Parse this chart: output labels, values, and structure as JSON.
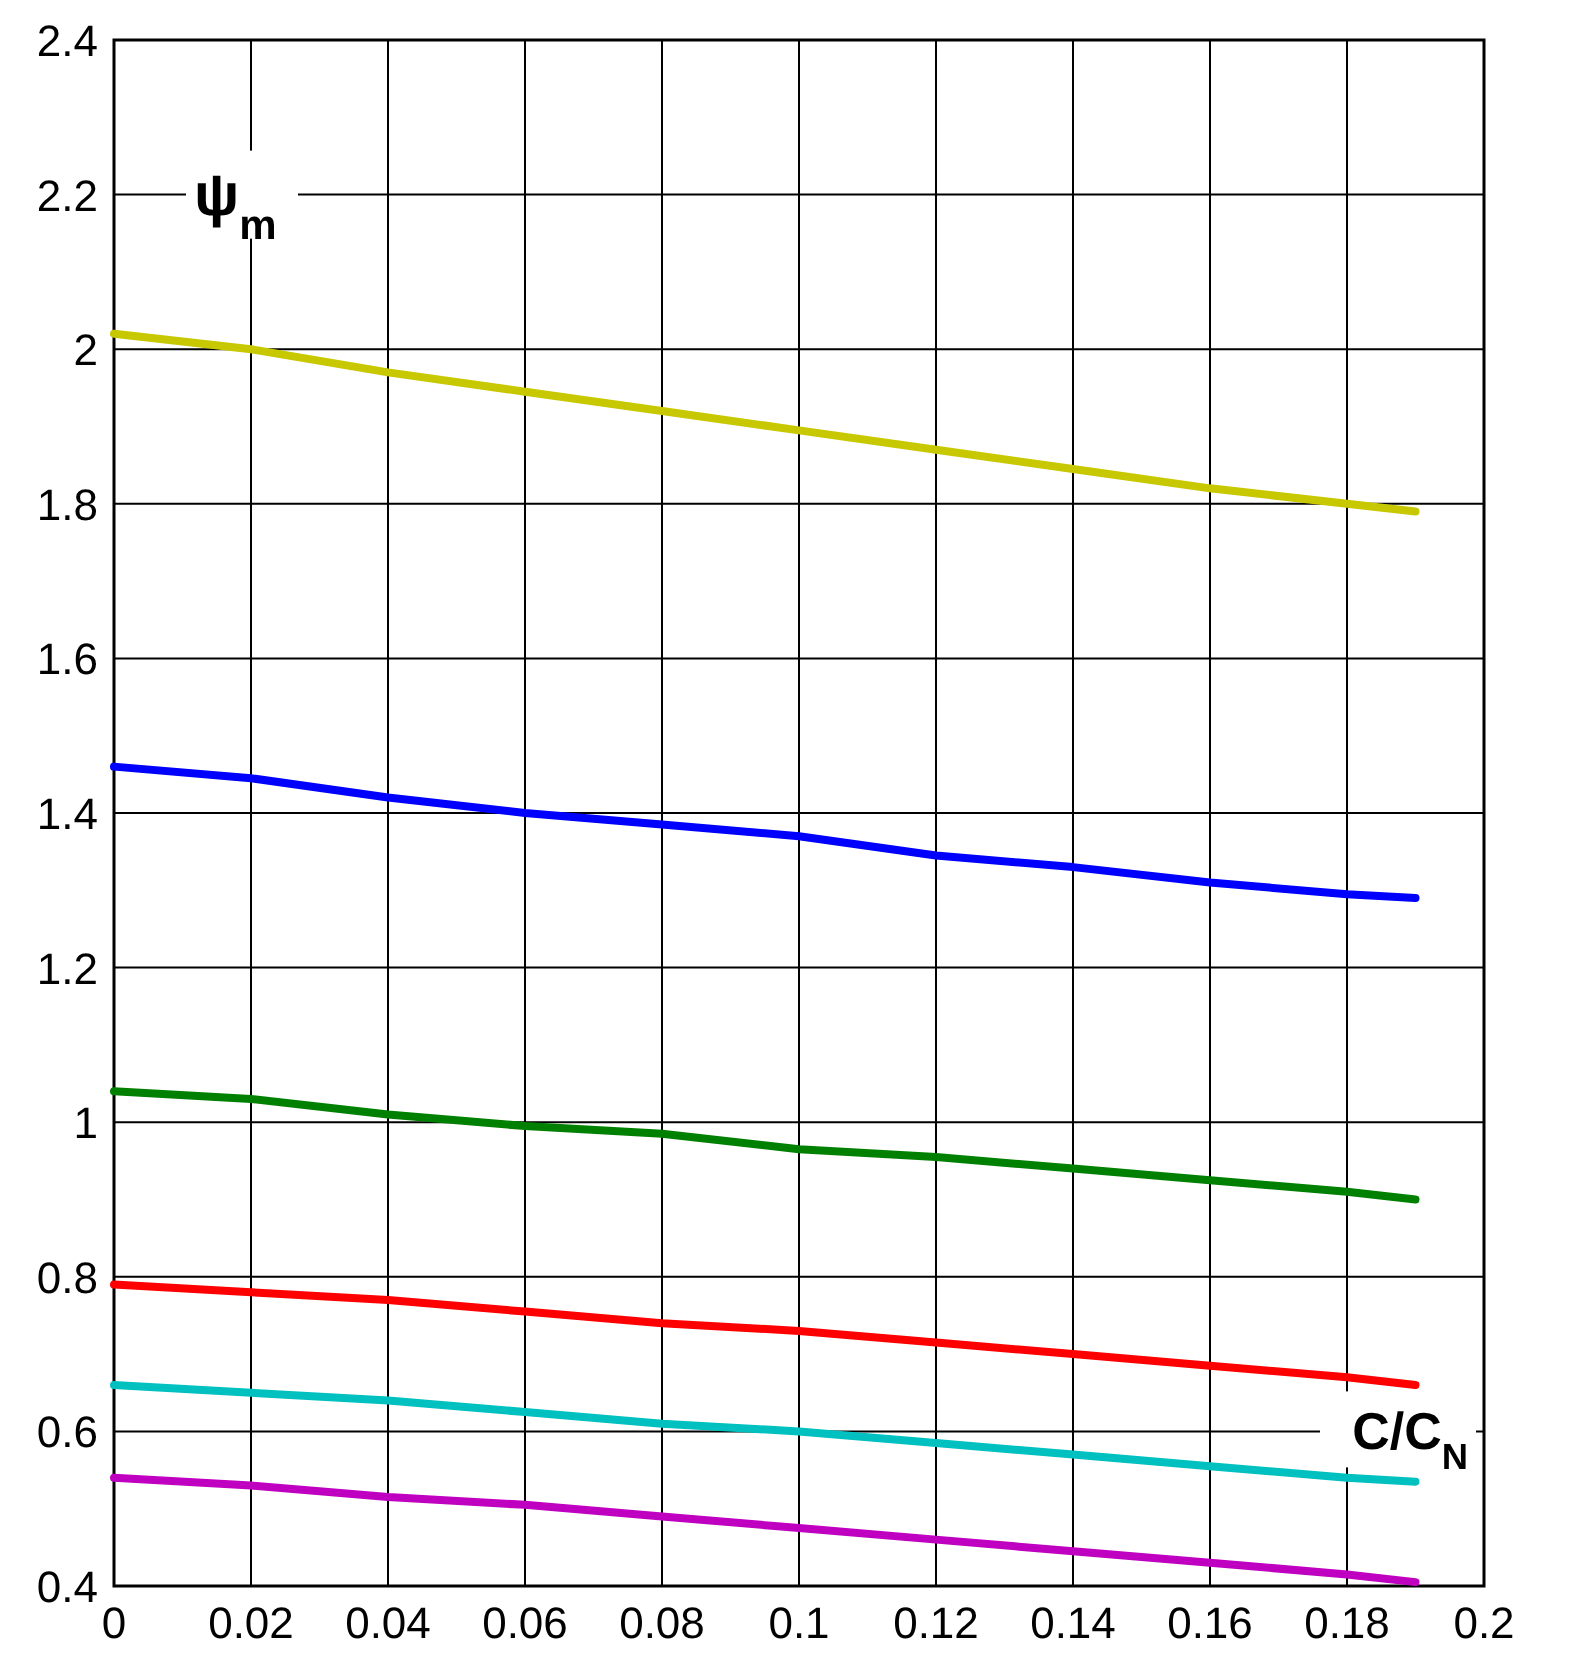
{
  "chart_data": {
    "type": "line",
    "xlabel": "C/C$_{N}$",
    "ylabel": "ψ$_{m}$",
    "x": [
      0,
      0.02,
      0.04,
      0.06,
      0.08,
      0.1,
      0.12,
      0.14,
      0.16,
      0.18,
      0.19
    ],
    "series": [
      {
        "color": "#c8c800",
        "values": [
          2.02,
          2.0,
          1.97,
          1.945,
          1.92,
          1.895,
          1.87,
          1.845,
          1.82,
          1.8,
          1.79
        ]
      },
      {
        "color": "#0000ff",
        "values": [
          1.46,
          1.445,
          1.42,
          1.4,
          1.385,
          1.37,
          1.345,
          1.33,
          1.31,
          1.295,
          1.29
        ]
      },
      {
        "color": "#008000",
        "values": [
          1.04,
          1.03,
          1.01,
          0.995,
          0.985,
          0.965,
          0.955,
          0.94,
          0.925,
          0.91,
          0.9
        ]
      },
      {
        "color": "#ff0000",
        "values": [
          0.79,
          0.78,
          0.77,
          0.755,
          0.74,
          0.73,
          0.715,
          0.7,
          0.685,
          0.67,
          0.66
        ]
      },
      {
        "color": "#00c0c0",
        "values": [
          0.66,
          0.65,
          0.64,
          0.625,
          0.61,
          0.6,
          0.585,
          0.57,
          0.555,
          0.54,
          0.535
        ]
      },
      {
        "color": "#c000c0",
        "values": [
          0.54,
          0.53,
          0.515,
          0.505,
          0.49,
          0.475,
          0.46,
          0.445,
          0.43,
          0.415,
          0.405
        ]
      }
    ],
    "xlim": [
      0,
      0.2
    ],
    "xticks": [
      0,
      0.02,
      0.04,
      0.06,
      0.08,
      0.1,
      0.12,
      0.14,
      0.16,
      0.18,
      0.2
    ],
    "ylim": [
      0.4,
      2.4
    ],
    "yticks": [
      0.4,
      0.6,
      0.8,
      1,
      1.2,
      1.4,
      1.6,
      1.8,
      2,
      2.2,
      2.4
    ],
    "grid": true,
    "marker": "none",
    "line_style": "solid"
  }
}
